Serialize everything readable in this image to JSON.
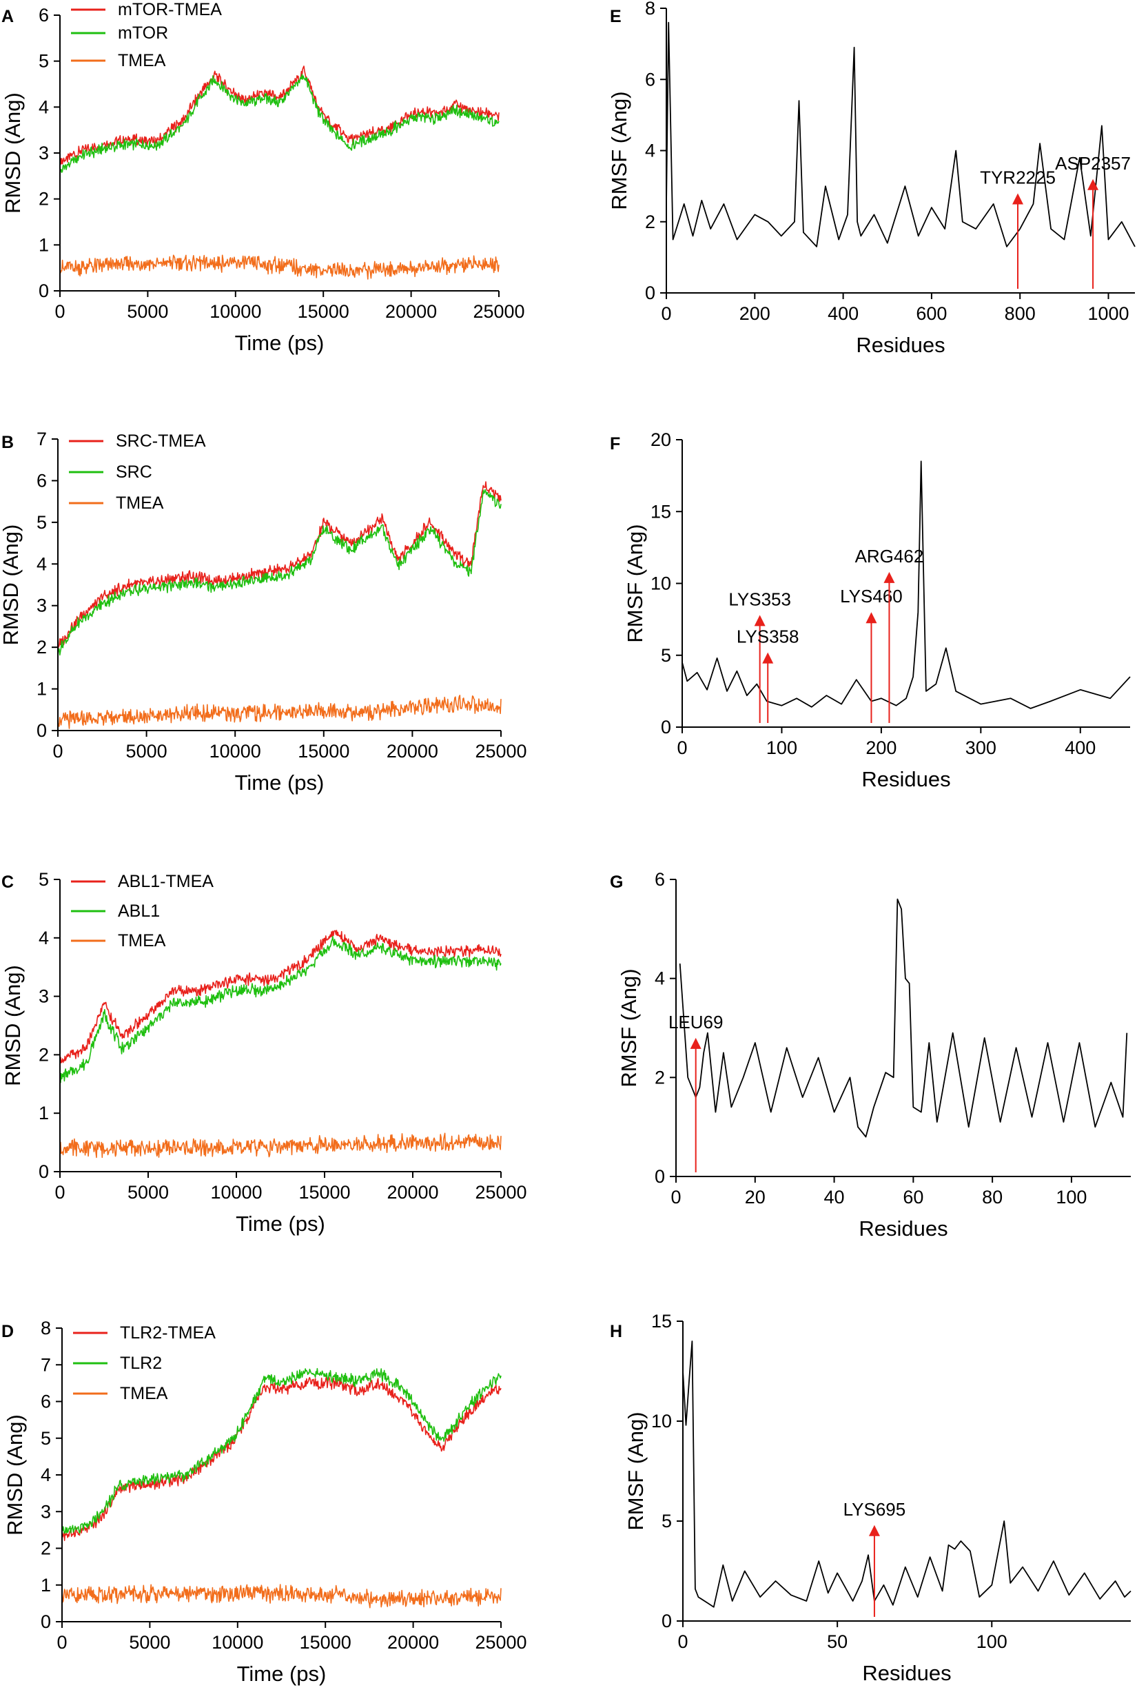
{
  "colors": {
    "complex": "#e8211b",
    "protein": "#1fbf10",
    "ligand": "#f26d1b",
    "rmsf": "#000000",
    "arrow": "#e8211b"
  },
  "chart_data": [
    {
      "panel": "A",
      "type": "line",
      "xlabel": "Time (ps)",
      "ylabel": "RMSD (Ang)",
      "xlim": [
        0,
        25000
      ],
      "ylim": [
        0,
        6
      ],
      "xticks": [
        "0",
        "5000",
        "10000",
        "15000",
        "20000",
        "25000"
      ],
      "yticks": [
        "0",
        "1",
        "2",
        "3",
        "4",
        "5",
        "6"
      ],
      "legend": [
        "mTOR-TMEA",
        "mTOR",
        "TMEA"
      ],
      "series": [
        {
          "name": "mTOR-TMEA",
          "x": [
            0,
            1000,
            2500,
            4000,
            5500,
            7000,
            8000,
            8800,
            9600,
            10500,
            11500,
            12500,
            13300,
            13900,
            14700,
            15500,
            16500,
            17500,
            18500,
            19500,
            20500,
            21500,
            22500,
            23500,
            24500,
            25000
          ],
          "y": [
            2.8,
            3.0,
            3.2,
            3.3,
            3.25,
            3.7,
            4.3,
            4.7,
            4.4,
            4.15,
            4.3,
            4.2,
            4.5,
            4.8,
            4.0,
            3.6,
            3.3,
            3.4,
            3.5,
            3.75,
            3.9,
            3.85,
            4.05,
            3.9,
            3.85,
            3.8
          ]
        },
        {
          "name": "mTOR",
          "x": [
            0,
            1000,
            2500,
            4000,
            5500,
            7000,
            8000,
            8800,
            9600,
            10500,
            11500,
            12500,
            13300,
            13900,
            14700,
            15500,
            16500,
            17500,
            18500,
            19500,
            20500,
            21500,
            22500,
            23500,
            24500,
            25000
          ],
          "y": [
            2.6,
            2.9,
            3.1,
            3.2,
            3.15,
            3.6,
            4.2,
            4.6,
            4.3,
            4.05,
            4.2,
            4.1,
            4.4,
            4.7,
            3.9,
            3.5,
            3.15,
            3.3,
            3.4,
            3.65,
            3.8,
            3.75,
            3.95,
            3.8,
            3.7,
            3.6
          ]
        },
        {
          "name": "TMEA",
          "x": [
            0,
            2500,
            5000,
            7500,
            10000,
            12500,
            15000,
            17500,
            20000,
            22500,
            25000
          ],
          "y": [
            0.5,
            0.55,
            0.6,
            0.6,
            0.6,
            0.55,
            0.45,
            0.45,
            0.5,
            0.55,
            0.6
          ]
        }
      ]
    },
    {
      "panel": "B",
      "type": "line",
      "xlabel": "Time (ps)",
      "ylabel": "RMSD (Ang)",
      "xlim": [
        0,
        25000
      ],
      "ylim": [
        0,
        7
      ],
      "xticks": [
        "0",
        "5000",
        "10000",
        "15000",
        "20000",
        "25000"
      ],
      "yticks": [
        "0",
        "1",
        "2",
        "3",
        "4",
        "5",
        "6",
        "7"
      ],
      "legend": [
        "SRC-TMEA",
        "SRC",
        "TMEA"
      ],
      "series": [
        {
          "name": "SRC-TMEA",
          "x": [
            0,
            1000,
            2500,
            4000,
            6000,
            7500,
            9000,
            11000,
            13000,
            14300,
            15000,
            16500,
            18300,
            19200,
            21000,
            22500,
            23300,
            24000,
            25000
          ],
          "y": [
            2.0,
            2.6,
            3.2,
            3.5,
            3.6,
            3.7,
            3.6,
            3.75,
            3.9,
            4.2,
            5.0,
            4.5,
            5.1,
            4.1,
            5.0,
            4.2,
            4.0,
            5.9,
            5.6
          ]
        },
        {
          "name": "SRC",
          "x": [
            0,
            1000,
            2500,
            4000,
            6000,
            7500,
            9000,
            11000,
            13000,
            14300,
            15000,
            16500,
            18300,
            19200,
            21000,
            22500,
            23300,
            24000,
            25000
          ],
          "y": [
            1.9,
            2.5,
            3.05,
            3.35,
            3.45,
            3.55,
            3.45,
            3.6,
            3.75,
            4.1,
            4.85,
            4.35,
            4.9,
            3.95,
            4.85,
            4.0,
            3.8,
            5.75,
            5.4
          ]
        },
        {
          "name": "TMEA",
          "x": [
            0,
            2500,
            5000,
            7500,
            10000,
            12500,
            15000,
            17500,
            20000,
            22500,
            25000
          ],
          "y": [
            0.25,
            0.3,
            0.35,
            0.4,
            0.4,
            0.45,
            0.45,
            0.45,
            0.55,
            0.65,
            0.55
          ]
        }
      ]
    },
    {
      "panel": "C",
      "type": "line",
      "xlabel": "Time (ps)",
      "ylabel": "RMSD (Ang)",
      "xlim": [
        0,
        25000
      ],
      "ylim": [
        0,
        5
      ],
      "xticks": [
        "0",
        "5000",
        "10000",
        "15000",
        "20000",
        "25000"
      ],
      "yticks": [
        "0",
        "1",
        "2",
        "3",
        "4",
        "5"
      ],
      "legend": [
        "ABL1-TMEA",
        "ABL1",
        "TMEA"
      ],
      "series": [
        {
          "name": "ABL1-TMEA",
          "x": [
            0,
            1500,
            2500,
            3500,
            5000,
            6500,
            8000,
            10000,
            12000,
            14000,
            15500,
            17000,
            18000,
            20000,
            22000,
            24000,
            25000
          ],
          "y": [
            1.9,
            2.1,
            2.9,
            2.3,
            2.7,
            3.1,
            3.1,
            3.3,
            3.3,
            3.6,
            4.1,
            3.8,
            4.0,
            3.8,
            3.75,
            3.8,
            3.75
          ]
        },
        {
          "name": "ABL1",
          "x": [
            0,
            1500,
            2500,
            3500,
            5000,
            6500,
            8000,
            10000,
            12000,
            14000,
            15500,
            17000,
            18000,
            20000,
            22000,
            24000,
            25000
          ],
          "y": [
            1.6,
            1.85,
            2.7,
            2.1,
            2.45,
            2.9,
            2.9,
            3.1,
            3.1,
            3.45,
            3.95,
            3.7,
            3.85,
            3.6,
            3.6,
            3.6,
            3.55
          ]
        },
        {
          "name": "TMEA",
          "x": [
            0,
            5000,
            10000,
            15000,
            20000,
            25000
          ],
          "y": [
            0.4,
            0.4,
            0.4,
            0.45,
            0.5,
            0.5
          ]
        }
      ]
    },
    {
      "panel": "D",
      "type": "line",
      "xlabel": "Time (ps)",
      "ylabel": "RMSD (Ang)",
      "xlim": [
        0,
        25000
      ],
      "ylim": [
        0,
        8
      ],
      "xticks": [
        "0",
        "5000",
        "10000",
        "15000",
        "20000",
        "25000"
      ],
      "yticks": [
        "0",
        "1",
        "2",
        "3",
        "4",
        "5",
        "6",
        "7",
        "8"
      ],
      "legend": [
        "TLR2-TMEA",
        "TLR2",
        "TMEA"
      ],
      "series": [
        {
          "name": "TLR2-TMEA",
          "x": [
            0,
            1500,
            2500,
            3200,
            4000,
            5500,
            7000,
            8500,
            9800,
            10500,
            11500,
            12500,
            14000,
            15500,
            17000,
            18000,
            19500,
            21000,
            21600,
            23000,
            24500,
            25000
          ],
          "y": [
            2.35,
            2.5,
            3.0,
            3.6,
            3.7,
            3.8,
            3.9,
            4.4,
            4.9,
            5.5,
            6.4,
            6.3,
            6.5,
            6.5,
            6.3,
            6.5,
            6.0,
            5.0,
            4.7,
            5.6,
            6.3,
            6.4
          ]
        },
        {
          "name": "TLR2",
          "x": [
            0,
            1500,
            2500,
            3200,
            4000,
            5500,
            7000,
            8500,
            9800,
            10500,
            11500,
            12500,
            14000,
            15500,
            17000,
            18000,
            19500,
            21000,
            21600,
            23000,
            24500,
            25000
          ],
          "y": [
            2.45,
            2.6,
            3.1,
            3.7,
            3.8,
            3.9,
            4.0,
            4.5,
            5.0,
            5.6,
            6.6,
            6.55,
            6.8,
            6.7,
            6.55,
            6.8,
            6.3,
            5.3,
            4.9,
            5.8,
            6.5,
            6.7
          ]
        },
        {
          "name": "TMEA",
          "x": [
            0,
            5000,
            10000,
            15000,
            18500,
            20000,
            25000
          ],
          "y": [
            0.7,
            0.75,
            0.75,
            0.75,
            0.6,
            0.65,
            0.7
          ]
        }
      ]
    },
    {
      "panel": "E",
      "type": "line",
      "xlabel": "Residues",
      "ylabel": "RMSF (Ang)",
      "xlim": [
        0,
        1060
      ],
      "ylim": [
        0,
        8
      ],
      "xticks": [
        "0",
        "200",
        "400",
        "600",
        "800",
        "1000"
      ],
      "yticks": [
        "0",
        "2",
        "4",
        "6",
        "8"
      ],
      "series": [
        {
          "name": "RMSF",
          "x": [
            0,
            5,
            15,
            40,
            60,
            80,
            100,
            130,
            160,
            200,
            230,
            260,
            290,
            300,
            310,
            340,
            360,
            390,
            410,
            425,
            432,
            440,
            470,
            500,
            540,
            570,
            600,
            630,
            655,
            670,
            700,
            740,
            770,
            800,
            830,
            845,
            870,
            900,
            935,
            960,
            985,
            1000,
            1030,
            1060
          ],
          "y": [
            2.5,
            7.6,
            1.5,
            2.5,
            1.6,
            2.6,
            1.8,
            2.5,
            1.5,
            2.2,
            2.0,
            1.6,
            2.0,
            5.4,
            1.7,
            1.3,
            3.0,
            1.5,
            2.2,
            6.9,
            2.0,
            1.6,
            2.2,
            1.4,
            3.0,
            1.6,
            2.4,
            1.8,
            4.0,
            2.0,
            1.8,
            2.5,
            1.3,
            1.8,
            2.5,
            4.2,
            1.8,
            1.5,
            3.8,
            1.6,
            4.7,
            1.5,
            2.0,
            1.3
          ]
        }
      ],
      "annotations": [
        {
          "label": "TYR2225",
          "x": 795,
          "y": 2.8
        },
        {
          "label": "ASP2357",
          "x": 965,
          "y": 3.2
        }
      ]
    },
    {
      "panel": "F",
      "type": "line",
      "xlabel": "Residues",
      "ylabel": "RMSF (Ang)",
      "xlim": [
        0,
        450
      ],
      "ylim": [
        0,
        20
      ],
      "xticks": [
        "0",
        "100",
        "200",
        "300",
        "400"
      ],
      "yticks": [
        "0",
        "5",
        "10",
        "15",
        "20"
      ],
      "series": [
        {
          "name": "RMSF",
          "x": [
            0,
            5,
            15,
            25,
            35,
            45,
            55,
            65,
            75,
            85,
            100,
            115,
            130,
            145,
            160,
            175,
            190,
            200,
            215,
            225,
            232,
            237,
            240,
            245,
            255,
            265,
            275,
            300,
            330,
            350,
            370,
            400,
            430,
            450
          ],
          "y": [
            4.5,
            3.2,
            3.8,
            2.6,
            4.8,
            2.5,
            3.9,
            2.2,
            3.0,
            1.8,
            1.5,
            2.0,
            1.4,
            2.2,
            1.6,
            3.3,
            1.8,
            2.0,
            1.5,
            2.0,
            3.5,
            8.0,
            18.5,
            2.5,
            3.0,
            5.5,
            2.5,
            1.6,
            2.0,
            1.3,
            1.8,
            2.6,
            2.0,
            3.5
          ]
        }
      ],
      "annotations": [
        {
          "label": "LYS353",
          "x": 78,
          "y": 7.8
        },
        {
          "label": "LYS358",
          "x": 86,
          "y": 5.2
        },
        {
          "label": "LYS460",
          "x": 190,
          "y": 8.0
        },
        {
          "label": "ARG462",
          "x": 208,
          "y": 10.8
        }
      ]
    },
    {
      "panel": "G",
      "type": "line",
      "xlabel": "Residues",
      "ylabel": "RMSF (Ang)",
      "xlim": [
        0,
        115
      ],
      "ylim": [
        0,
        6
      ],
      "xticks": [
        "0",
        "20",
        "40",
        "60",
        "80",
        "100"
      ],
      "yticks": [
        "0",
        "2",
        "4",
        "6"
      ],
      "series": [
        {
          "name": "RMSF",
          "x": [
            1,
            3,
            5,
            6,
            7,
            8,
            10,
            12,
            14,
            17,
            20,
            24,
            28,
            32,
            36,
            40,
            44,
            46,
            48,
            50,
            53,
            55,
            56,
            57,
            58,
            59,
            60,
            62,
            64,
            66,
            70,
            74,
            78,
            82,
            86,
            90,
            94,
            98,
            102,
            106,
            110,
            113,
            114
          ],
          "y": [
            4.3,
            2.0,
            1.6,
            1.8,
            2.5,
            2.9,
            1.3,
            2.5,
            1.4,
            2.0,
            2.7,
            1.3,
            2.6,
            1.6,
            2.4,
            1.3,
            2.0,
            1.0,
            0.8,
            1.4,
            2.1,
            2.0,
            5.6,
            5.4,
            4.0,
            3.9,
            1.4,
            1.3,
            2.7,
            1.1,
            2.9,
            1.0,
            2.8,
            1.1,
            2.6,
            1.2,
            2.7,
            1.1,
            2.7,
            1.0,
            1.9,
            1.2,
            2.9
          ]
        }
      ],
      "annotations": [
        {
          "label": "LEU69",
          "x": 5,
          "y": 2.8
        }
      ]
    },
    {
      "panel": "H",
      "type": "line",
      "xlabel": "Residues",
      "ylabel": "RMSF (Ang)",
      "xlim": [
        0,
        145
      ],
      "ylim": [
        0,
        15
      ],
      "xticks": [
        "0",
        "50",
        "100"
      ],
      "yticks": [
        "0",
        "5",
        "10",
        "15"
      ],
      "series": [
        {
          "name": "RMSF",
          "x": [
            0,
            1,
            2,
            3,
            4,
            5,
            8,
            10,
            13,
            16,
            20,
            25,
            30,
            35,
            40,
            44,
            47,
            50,
            55,
            58,
            60,
            62,
            65,
            68,
            72,
            76,
            80,
            84,
            86,
            88,
            90,
            93,
            96,
            100,
            104,
            106,
            110,
            115,
            120,
            125,
            130,
            135,
            140,
            143,
            145
          ],
          "y": [
            12.5,
            9.8,
            12.0,
            14.0,
            1.6,
            1.2,
            0.9,
            0.7,
            2.8,
            1.0,
            2.5,
            1.2,
            2.0,
            1.3,
            1.0,
            3.0,
            1.4,
            2.4,
            1.0,
            2.0,
            3.3,
            1.0,
            1.8,
            0.8,
            2.7,
            1.2,
            3.2,
            1.5,
            3.8,
            3.6,
            4.0,
            3.5,
            1.2,
            1.8,
            5.0,
            1.9,
            2.7,
            1.5,
            3.0,
            1.3,
            2.4,
            1.1,
            2.0,
            1.2,
            1.5
          ]
        }
      ],
      "annotations": [
        {
          "label": "LYS695",
          "x": 62,
          "y": 4.8
        }
      ]
    }
  ]
}
